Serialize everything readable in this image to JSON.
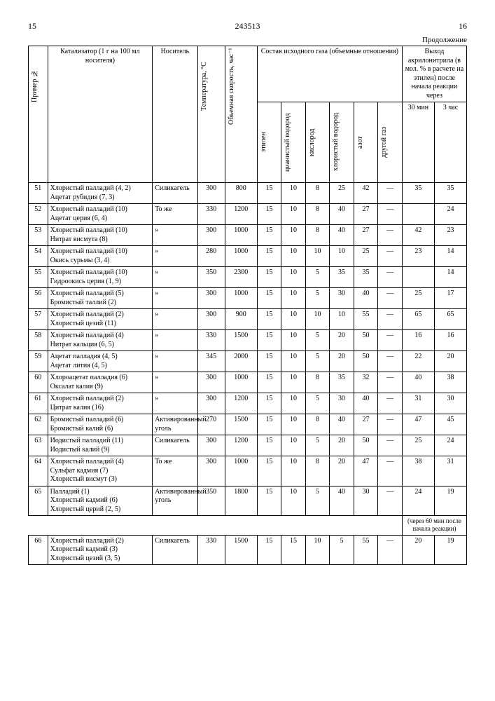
{
  "doc_number": "243513",
  "page_left": "15",
  "page_right": "16",
  "continuation": "Продолжение",
  "headers": {
    "example": "Пример №",
    "catalyst": "Катализатор (1 г на 100 мл носителя)",
    "carrier": "Носитель",
    "temp": "Температура, °C",
    "velocity": "Объемная скорость, час⁻¹",
    "gas_group": "Состав исходного газа (объемные отношения)",
    "ethylene": "этилен",
    "hcn": "цианистый водород",
    "oxygen": "кислород",
    "hcl": "хлористый водород",
    "nitrogen": "азот",
    "other": "другой газ",
    "yield_group": "Выход акрилонитрила (в мол. % в расчете на этилен) после начала реакции через",
    "t30": "30 мин",
    "t3h": "3 час"
  },
  "rows": [
    {
      "n": "51",
      "cat": "Хлористый палладий (4, 2)\nАцетат рубидия (7, 3)",
      "car": "Силикагель",
      "temp": "300",
      "vel": "800",
      "g": [
        "15",
        "10",
        "8",
        "25",
        "42",
        "—"
      ],
      "y": [
        "35",
        "35"
      ]
    },
    {
      "n": "52",
      "cat": "Хлористый палладий (10)\nАцетат церия (6, 4)",
      "car": "То же",
      "temp": "330",
      "vel": "1200",
      "g": [
        "15",
        "10",
        "8",
        "40",
        "27",
        "—"
      ],
      "y": [
        "",
        "24"
      ]
    },
    {
      "n": "53",
      "cat": "Хлористый палладий (10)\nНитрат висмута (8)",
      "car": "»",
      "temp": "300",
      "vel": "1000",
      "g": [
        "15",
        "10",
        "8",
        "40",
        "27",
        "—"
      ],
      "y": [
        "42",
        "23"
      ]
    },
    {
      "n": "54",
      "cat": "Хлористый палладий (10)\nОкись сурьмы (3, 4)",
      "car": "»",
      "temp": "280",
      "vel": "1000",
      "g": [
        "15",
        "10",
        "10",
        "10",
        "25",
        "—"
      ],
      "y": [
        "23",
        "14"
      ]
    },
    {
      "n": "55",
      "cat": "Хлористый палладий (10)\nГидроокись церия (1, 9)",
      "car": "»",
      "temp": "350",
      "vel": "2300",
      "g": [
        "15",
        "10",
        "5",
        "35",
        "35",
        "—"
      ],
      "y": [
        "",
        "14"
      ]
    },
    {
      "n": "56",
      "cat": "Хлористый палладий (5)\nБромистый таллий (2)",
      "car": "»",
      "temp": "300",
      "vel": "1000",
      "g": [
        "15",
        "10",
        "5",
        "30",
        "40",
        "—"
      ],
      "y": [
        "25",
        "17"
      ]
    },
    {
      "n": "57",
      "cat": "Хлористый палладий (2)\nХлористый цезий (11)",
      "car": "»",
      "temp": "300",
      "vel": "900",
      "g": [
        "15",
        "10",
        "10",
        "10",
        "55",
        "—"
      ],
      "y": [
        "65",
        "65"
      ]
    },
    {
      "n": "58",
      "cat": "Хлористый палладий (4)\nНитрат кальция (6, 5)",
      "car": "»",
      "temp": "330",
      "vel": "1500",
      "g": [
        "15",
        "10",
        "5",
        "20",
        "50",
        "—"
      ],
      "y": [
        "16",
        "16"
      ]
    },
    {
      "n": "59",
      "cat": "Ацетат палладия (4, 5)\nАцетат лития (4, 5)",
      "car": "»",
      "temp": "345",
      "vel": "2000",
      "g": [
        "15",
        "10",
        "5",
        "20",
        "50",
        "—"
      ],
      "y": [
        "22",
        "20"
      ]
    },
    {
      "n": "60",
      "cat": "Хлороацетат палладия (6)\nОксалат калия (9)",
      "car": "»",
      "temp": "300",
      "vel": "1000",
      "g": [
        "15",
        "10",
        "8",
        "35",
        "32",
        "—"
      ],
      "y": [
        "40",
        "38"
      ]
    },
    {
      "n": "61",
      "cat": "Хлористый палладий (2)\nЦитрат калия (16)",
      "car": "»",
      "temp": "300",
      "vel": "1200",
      "g": [
        "15",
        "10",
        "5",
        "30",
        "40",
        "—"
      ],
      "y": [
        "31",
        "30"
      ]
    },
    {
      "n": "62",
      "cat": "Бромистый палладий (6)\nБромистый калий (6)",
      "car": "Активированный уголь",
      "temp": "270",
      "vel": "1500",
      "g": [
        "15",
        "10",
        "8",
        "40",
        "27",
        "—"
      ],
      "y": [
        "47",
        "45"
      ]
    },
    {
      "n": "63",
      "cat": "Иодистый палладий (11)\nИодистый калий (9)",
      "car": "Силикагель",
      "temp": "300",
      "vel": "1200",
      "g": [
        "15",
        "10",
        "5",
        "20",
        "50",
        "—"
      ],
      "y": [
        "25",
        "24"
      ]
    },
    {
      "n": "64",
      "cat": "Хлористый палладий (4)\nСульфат кадмия (7)\nХлористый висмут (3)",
      "car": "То же",
      "temp": "300",
      "vel": "1000",
      "g": [
        "15",
        "10",
        "8",
        "20",
        "47",
        "—"
      ],
      "y": [
        "38",
        "31"
      ]
    },
    {
      "n": "65",
      "cat": "Палладий (1)\nХлористый кадмий (6)\nХлористый церий (2, 5)",
      "car": "Активированный уголь",
      "temp": "350",
      "vel": "1800",
      "g": [
        "15",
        "10",
        "5",
        "40",
        "30",
        "—"
      ],
      "y": [
        "24",
        "19"
      ],
      "note": "(через 60 мин после начала реакции)"
    },
    {
      "n": "66",
      "cat": "Хлористый палладий (2)\nХлористый кадмий (3)\nХлористый цезий (3, 5)",
      "car": "Силикагель",
      "temp": "330",
      "vel": "1500",
      "g": [
        "15",
        "15",
        "10",
        "5",
        "55",
        "—"
      ],
      "y": [
        "20",
        "19"
      ]
    }
  ]
}
